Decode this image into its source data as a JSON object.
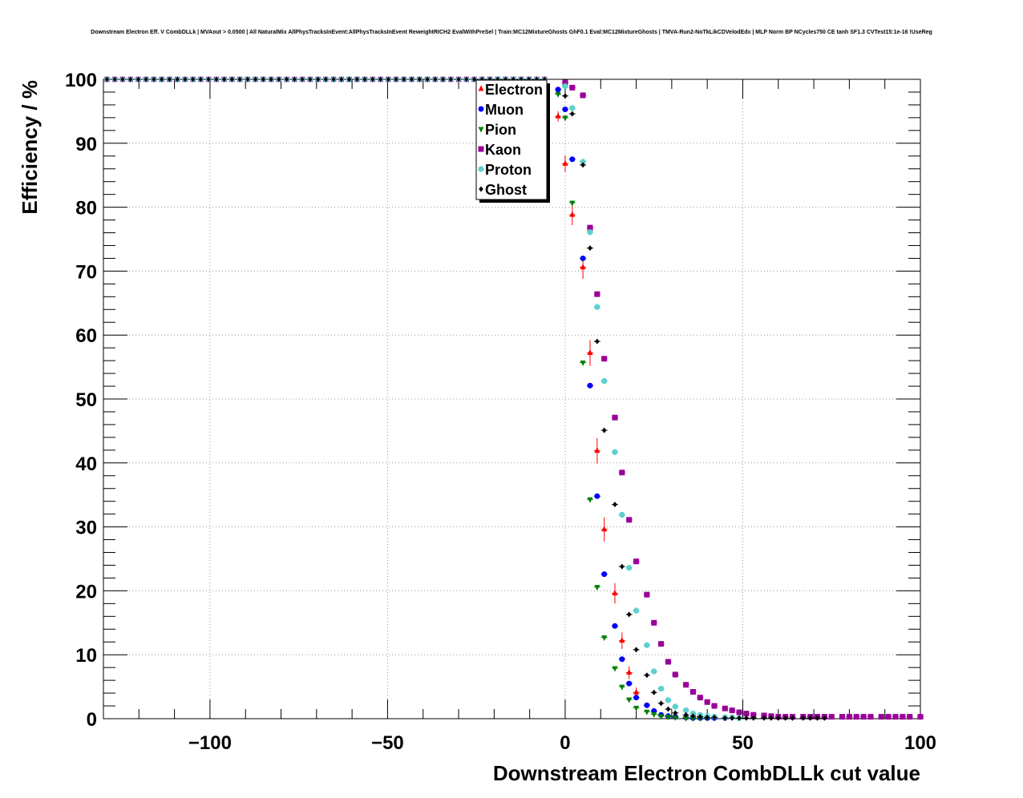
{
  "chart_data": {
    "type": "scatter",
    "title": "Downstream Electron Eff. V CombDLLk | MVAout > 0.0500 | All NaturalMix AllPhysTracksInEvent:AllPhysTracksInEvent ReweightRICH2 EvalWithPreSel | Train:MC12MixtureGhosts GhF0.1 Eval:MC12MixtureGhosts | TMVA-Run2-NoTkLikCDVelodEdx | MLP Norm BP NCycles750 CE tanh SF1.3 CVTest15:1e-16 !UseReg",
    "xlabel": "Downstream Electron CombDLLk cut value",
    "ylabel": "Efficiency / %",
    "xlim": [
      -130,
      100
    ],
    "ylim": [
      0,
      100
    ],
    "grid": true,
    "legend_position": "top-center",
    "x_ticks": [
      {
        "value": -100,
        "label": "−100"
      },
      {
        "value": -50,
        "label": "−50"
      },
      {
        "value": 0,
        "label": "0"
      },
      {
        "value": 50,
        "label": "50"
      },
      {
        "value": 100,
        "label": "100"
      }
    ],
    "y_ticks": [
      {
        "value": 0,
        "label": "0"
      },
      {
        "value": 10,
        "label": "10"
      },
      {
        "value": 20,
        "label": "20"
      },
      {
        "value": 30,
        "label": "30"
      },
      {
        "value": 40,
        "label": "40"
      },
      {
        "value": 50,
        "label": "50"
      },
      {
        "value": 60,
        "label": "60"
      },
      {
        "value": 70,
        "label": "70"
      },
      {
        "value": 80,
        "label": "80"
      },
      {
        "value": 90,
        "label": "90"
      },
      {
        "value": 100,
        "label": "100"
      }
    ],
    "series": [
      {
        "name": "Electron",
        "color": "#ff0000",
        "marker": "triangle-up",
        "x": [
          -2,
          0,
          2,
          5,
          7,
          9,
          11,
          14,
          16,
          18,
          20
        ],
        "y": [
          94.2,
          86.8,
          78.8,
          70.6,
          57.2,
          41.9,
          29.6,
          19.6,
          12.2,
          7.2,
          4.1
        ],
        "yerr": [
          0.8,
          1.3,
          1.6,
          1.8,
          2,
          2,
          1.9,
          1.6,
          1.3,
          1,
          0.8
        ]
      },
      {
        "name": "Muon",
        "color": "#0000ff",
        "marker": "circle",
        "x": [
          -2,
          0,
          2,
          5,
          7,
          9,
          11,
          14,
          16,
          18,
          20,
          23,
          25,
          27,
          29,
          31,
          34,
          36,
          38,
          40,
          42,
          45
        ],
        "y": [
          98.4,
          95.3,
          87.5,
          72.0,
          52.1,
          34.8,
          22.6,
          14.5,
          9.3,
          5.5,
          3.3,
          2.1,
          1.2,
          0.6,
          0.4,
          0.3,
          0.2,
          0.1,
          0.1,
          0.1,
          0.1,
          0.1
        ]
      },
      {
        "name": "Pion",
        "color": "#008000",
        "marker": "triangle-down",
        "x": [
          -2,
          0,
          2,
          5,
          7,
          9,
          11,
          14,
          16,
          18,
          20,
          23,
          25,
          27,
          29,
          31,
          34,
          36,
          38,
          40
        ],
        "y": [
          97.7,
          94.0,
          80.7,
          55.7,
          34.3,
          20.6,
          12.7,
          7.9,
          5.0,
          3.0,
          1.7,
          1.1,
          0.7,
          0.4,
          0.3,
          0.2,
          0.1,
          0.1,
          0.1,
          0.1
        ]
      },
      {
        "name": "Kaon",
        "color": "#990099",
        "marker": "square",
        "x": [
          0,
          2,
          5,
          7,
          9,
          11,
          14,
          16,
          18,
          20,
          23,
          25,
          27,
          29,
          31,
          34,
          36,
          38,
          40,
          42,
          45,
          47,
          49,
          51,
          53,
          56,
          58,
          60,
          62,
          64,
          67,
          69,
          71,
          73,
          75,
          78,
          80,
          82,
          84,
          86,
          89,
          91,
          93,
          95,
          97,
          100
        ],
        "y": [
          99.5,
          98.7,
          97.5,
          76.8,
          66.4,
          56.3,
          47.1,
          38.5,
          31.1,
          24.6,
          19.4,
          15.0,
          11.7,
          8.9,
          6.9,
          5.3,
          4.2,
          3.3,
          2.6,
          2.0,
          1.6,
          1.3,
          1.0,
          0.8,
          0.6,
          0.5,
          0.4,
          0.3,
          0.3,
          0.3,
          0.3,
          0.3,
          0.3,
          0.3,
          0.3,
          0.3,
          0.3,
          0.3,
          0.3,
          0.3,
          0.3,
          0.3,
          0.3,
          0.3,
          0.3,
          0.3
        ]
      },
      {
        "name": "Proton",
        "color": "#5fcfcf",
        "marker": "cross",
        "x": [
          0,
          2,
          5,
          7,
          9,
          11,
          14,
          16,
          18,
          20,
          23,
          25,
          27,
          29,
          31,
          34,
          36,
          38,
          40,
          42,
          45,
          47,
          49
        ],
        "y": [
          98.9,
          95.5,
          87.1,
          76.1,
          64.4,
          52.8,
          41.7,
          31.9,
          23.6,
          16.9,
          11.5,
          7.4,
          4.7,
          2.9,
          1.9,
          1.3,
          0.8,
          0.6,
          0.4,
          0.3,
          0.2,
          0.2,
          0.1
        ]
      },
      {
        "name": "Ghost",
        "color": "#000000",
        "marker": "diamond",
        "x": [
          0,
          2,
          5,
          7,
          9,
          11,
          14,
          16,
          18,
          20,
          23,
          25,
          27,
          29,
          31,
          34,
          36,
          38,
          40,
          42,
          45,
          47,
          49,
          51,
          53,
          56,
          58,
          60,
          62,
          64,
          67,
          69,
          71,
          73
        ],
        "y": [
          97.4,
          94.6,
          86.6,
          73.6,
          59.0,
          45.1,
          33.5,
          23.8,
          16.3,
          10.8,
          6.8,
          4.1,
          2.4,
          1.5,
          0.9,
          0.6,
          0.4,
          0.3,
          0.2,
          0.2,
          0.1,
          0.1,
          0.1,
          0.1,
          0.1,
          0.1,
          0.1,
          0.1,
          0.1,
          0.1,
          0.1,
          0.1,
          0.1,
          0.1
        ]
      }
    ]
  }
}
